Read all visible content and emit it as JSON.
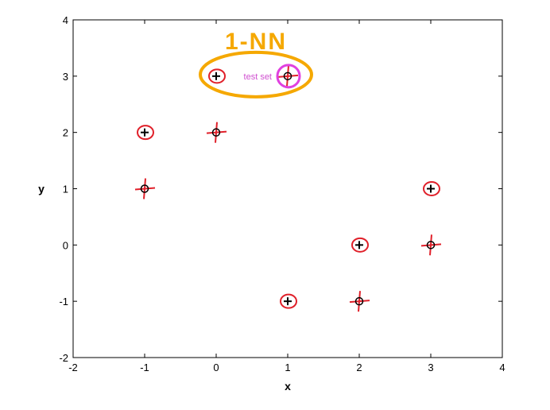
{
  "chart_data": {
    "type": "scatter",
    "title": "",
    "xlabel": "x",
    "ylabel": "y",
    "xlim": [
      -2,
      4
    ],
    "ylim": [
      -2,
      4
    ],
    "xticks": [
      -2,
      -1,
      0,
      1,
      2,
      3,
      4
    ],
    "yticks": [
      -2,
      -1,
      0,
      1,
      2,
      3,
      4
    ],
    "xtick_labels": [
      "-2",
      "-1",
      "0",
      "1",
      "2",
      "3",
      "4"
    ],
    "ytick_labels": [
      "-2",
      "-1",
      "0",
      "1",
      "2",
      "3",
      "4"
    ],
    "grid": false,
    "points": [
      {
        "x": -1,
        "y": 2,
        "marker": "+",
        "annotation": "red-circle"
      },
      {
        "x": -1,
        "y": 1,
        "marker": "o",
        "annotation": "red-cross"
      },
      {
        "x": 0,
        "y": 3,
        "marker": "+",
        "annotation": "red-circle"
      },
      {
        "x": 0,
        "y": 2,
        "marker": "o",
        "annotation": "red-cross"
      },
      {
        "x": 1,
        "y": 3,
        "marker": "o",
        "annotation": "red-cross"
      },
      {
        "x": 1,
        "y": -1,
        "marker": "+",
        "annotation": "red-circle"
      },
      {
        "x": 2,
        "y": 0,
        "marker": "+",
        "annotation": "red-circle"
      },
      {
        "x": 2,
        "y": -1,
        "marker": "o",
        "annotation": "red-cross"
      },
      {
        "x": 3,
        "y": 1,
        "marker": "+",
        "annotation": "red-circle"
      },
      {
        "x": 3,
        "y": 0,
        "marker": "o",
        "annotation": "red-cross"
      }
    ],
    "annotations": {
      "handwritten_title": "1-NN",
      "test_set_label": "test set",
      "test_point": {
        "x": 1,
        "y": 3
      },
      "colors": {
        "marker": "#000000",
        "red_annotation": "#e0202a",
        "test_highlight": "#e040e0",
        "test_label": "#d050d0",
        "group_ellipse": "#f5a800"
      }
    }
  }
}
